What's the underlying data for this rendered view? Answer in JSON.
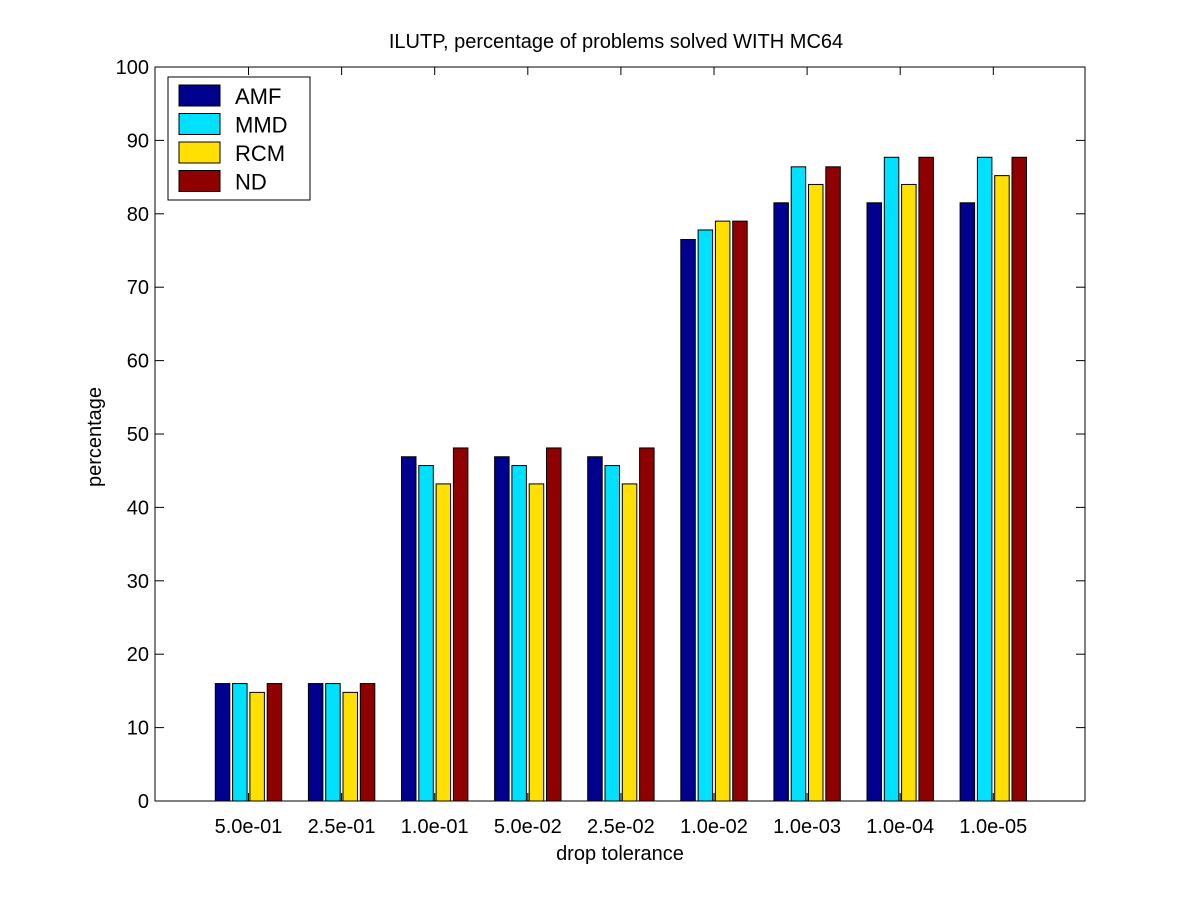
{
  "chart_data": {
    "type": "bar",
    "title": "ILUTP, percentage of problems solved WITH MC64",
    "xlabel": "drop tolerance",
    "ylabel": "percentage",
    "ylim": [
      0,
      100
    ],
    "yticks": [
      "0",
      "10",
      "20",
      "30",
      "40",
      "50",
      "60",
      "70",
      "80",
      "90",
      "100"
    ],
    "grid": false,
    "legend": "top-left",
    "categories": [
      "5.0e-01",
      "2.5e-01",
      "1.0e-01",
      "5.0e-02",
      "2.5e-02",
      "1.0e-02",
      "1.0e-03",
      "1.0e-04",
      "1.0e-05"
    ],
    "series": [
      {
        "name": "AMF",
        "color": "#00008f",
        "values": [
          16.0,
          16.0,
          46.9,
          46.9,
          46.9,
          76.5,
          81.5,
          81.5,
          81.5
        ]
      },
      {
        "name": "MMD",
        "color": "#00e0ff",
        "values": [
          16.0,
          16.0,
          45.7,
          45.7,
          45.7,
          77.8,
          86.4,
          87.7,
          87.7
        ]
      },
      {
        "name": "RCM",
        "color": "#ffe000",
        "values": [
          14.8,
          14.8,
          43.2,
          43.2,
          43.2,
          79.0,
          84.0,
          84.0,
          85.2
        ]
      },
      {
        "name": "ND",
        "color": "#8f0000",
        "values": [
          16.0,
          16.0,
          48.1,
          48.1,
          48.1,
          79.0,
          86.4,
          87.7,
          87.7
        ]
      }
    ]
  }
}
